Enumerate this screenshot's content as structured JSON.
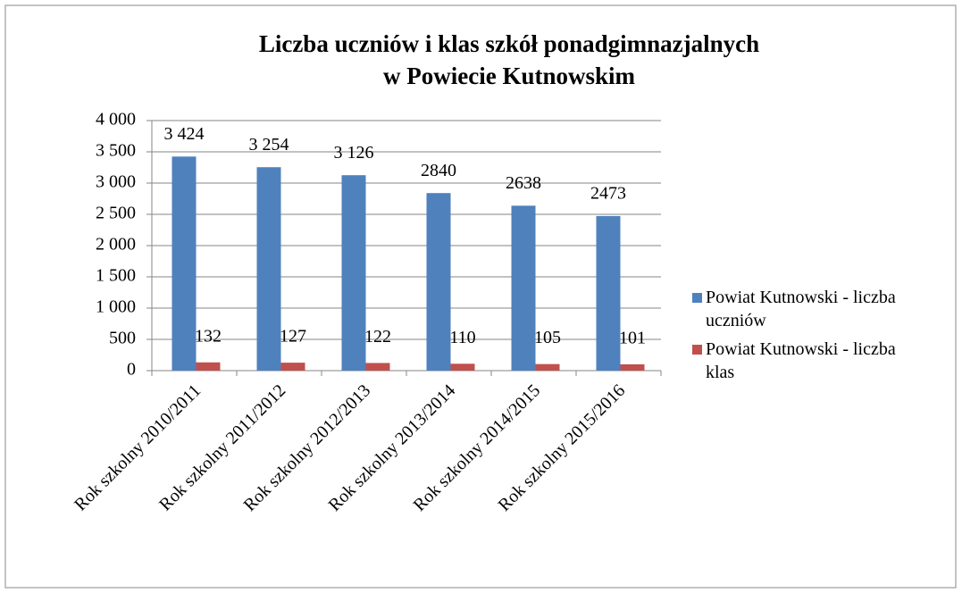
{
  "chart_data": {
    "type": "bar",
    "title": [
      "Liczba uczniów i klas szkół ponadgimnazjalnych",
      "w Powiecie Kutnowskim"
    ],
    "categories": [
      "Rok szkolny 2010/2011",
      "Rok szkolny 2011/2012",
      "Rok szkolny 2012/2013",
      "Rok szkolny 2013/2014",
      "Rok szkolny 2014/2015",
      "Rok szkolny 2015/2016"
    ],
    "series": [
      {
        "name": "Powiat Kutnowski - liczba uczniów",
        "color": "#4f81bd",
        "values": [
          3424,
          3254,
          3126,
          2840,
          2638,
          2473
        ],
        "value_labels": [
          "3 424",
          "3 254",
          "3 126",
          "2840",
          "2638",
          "2473"
        ]
      },
      {
        "name": "Powiat Kutnowski - liczba klas",
        "color": "#c0504d",
        "values": [
          132,
          127,
          122,
          110,
          105,
          101
        ]
      }
    ],
    "ylim": [
      0,
      4000
    ],
    "yticks": [
      0,
      500,
      {
        "value": 1000,
        "label": "1 000"
      },
      {
        "value": 1500,
        "label": "1 500"
      },
      {
        "value": 2000,
        "label": "2 000"
      },
      {
        "value": 2500,
        "label": "2 500"
      },
      {
        "value": 3000,
        "label": "3 000"
      },
      {
        "value": 3500,
        "label": "3 500"
      },
      {
        "value": 4000,
        "label": "4 000"
      }
    ],
    "grid": true,
    "legend": "right"
  }
}
